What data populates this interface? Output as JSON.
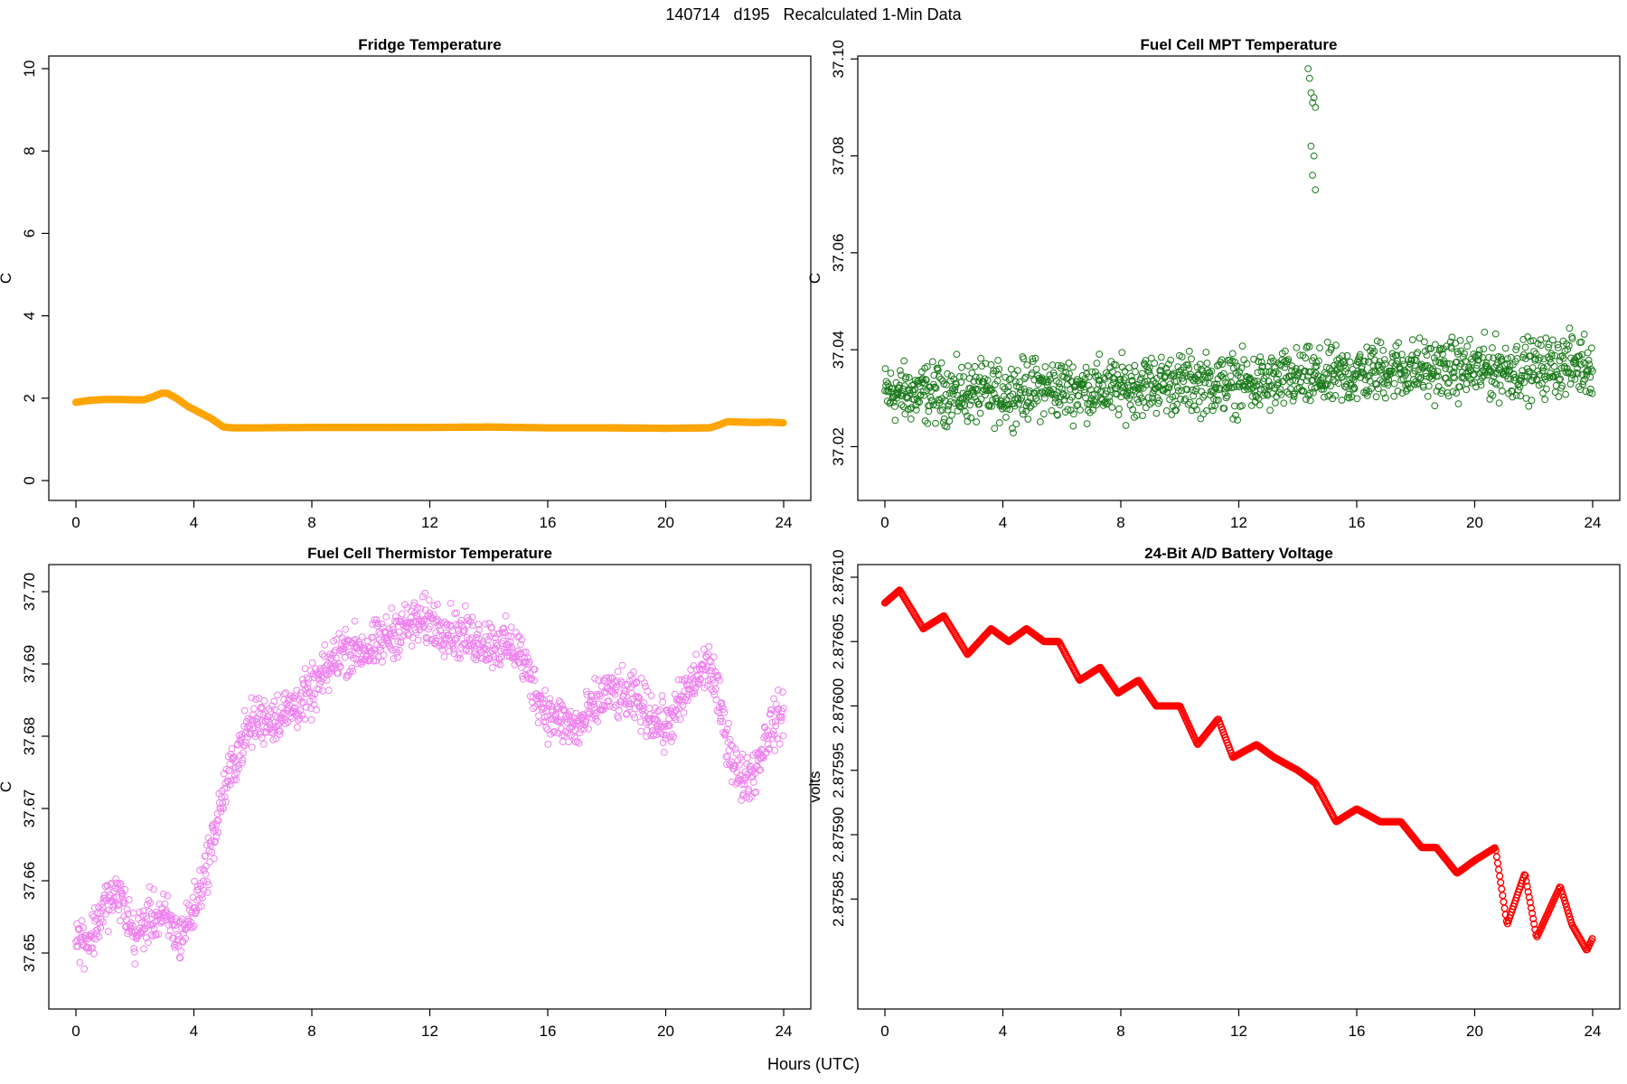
{
  "main_title": "140714   d195   Recalculated 1-Min Data",
  "x_axis_title": "Hours (UTC)",
  "chart_data": [
    {
      "id": "fridge",
      "type": "scatter",
      "title": "Fridge Temperature",
      "ylabel": "C",
      "xlabel": "",
      "color": "#FFA500",
      "xlim": [
        0,
        24
      ],
      "ylim": [
        0,
        10
      ],
      "xticks": [
        0,
        4,
        8,
        12,
        16,
        20,
        24
      ],
      "yticks": [
        0,
        2,
        4,
        6,
        8,
        10
      ],
      "ytick_labels": [
        "0",
        "2",
        "4",
        "6",
        "8",
        "10"
      ],
      "series": [
        {
          "x": [
            0,
            0.5,
            1,
            1.5,
            2,
            2.3,
            2.6,
            2.9,
            3.1,
            3.4,
            3.8,
            4.2,
            4.6,
            5.0,
            5.3,
            6,
            8,
            10,
            12,
            14,
            16,
            18,
            20,
            21.5,
            21.8,
            22.1,
            22.5,
            23,
            23.5,
            24
          ],
          "y": [
            1.9,
            1.95,
            1.97,
            1.97,
            1.96,
            1.96,
            2.03,
            2.12,
            2.12,
            2.0,
            1.8,
            1.65,
            1.5,
            1.3,
            1.28,
            1.28,
            1.29,
            1.29,
            1.29,
            1.3,
            1.28,
            1.28,
            1.27,
            1.28,
            1.35,
            1.43,
            1.42,
            1.41,
            1.42,
            1.4
          ]
        }
      ]
    },
    {
      "id": "mpt",
      "type": "scatter",
      "title": "Fuel Cell MPT Temperature",
      "ylabel": "C",
      "xlabel": "",
      "color": "#1A7A1A",
      "xlim": [
        0,
        24
      ],
      "ylim": [
        37.013,
        37.098
      ],
      "xticks": [
        0,
        4,
        8,
        12,
        16,
        20,
        24
      ],
      "yticks": [
        37.02,
        37.04,
        37.06,
        37.08,
        37.1
      ],
      "ytick_labels": [
        "37.02",
        "37.04",
        "37.06",
        "37.08",
        "37.10"
      ],
      "series": [
        {
          "x": [
            0,
            1,
            2,
            3,
            4,
            5,
            6,
            7,
            8,
            9,
            10,
            11,
            12,
            13,
            14,
            15,
            16,
            17,
            18,
            19,
            20,
            21,
            22,
            23,
            24
          ],
          "y": [
            37.031,
            37.031,
            37.031,
            37.031,
            37.031,
            37.032,
            37.032,
            37.032,
            37.032,
            37.033,
            37.033,
            37.033,
            37.033,
            37.033,
            37.034,
            37.034,
            37.035,
            37.036,
            37.036,
            37.036,
            37.036,
            37.036,
            37.036,
            37.037,
            37.037
          ],
          "spread": 0.009
        },
        {
          "x": [
            14.35,
            14.4,
            14.45,
            14.5,
            14.55,
            14.6,
            14.45,
            14.55,
            14.6,
            14.5
          ],
          "y": [
            37.098,
            37.096,
            37.093,
            37.091,
            37.092,
            37.09,
            37.082,
            37.08,
            37.073,
            37.076
          ]
        }
      ]
    },
    {
      "id": "thermistor",
      "type": "scatter",
      "title": "Fuel Cell Thermistor Temperature",
      "ylabel": "C",
      "xlabel": "",
      "color": "#EE82EE",
      "xlim": [
        0,
        24
      ],
      "ylim": [
        37.645,
        37.702
      ],
      "xticks": [
        0,
        4,
        8,
        12,
        16,
        20,
        24
      ],
      "yticks": [
        37.65,
        37.66,
        37.67,
        37.68,
        37.69,
        37.7
      ],
      "ytick_labels": [
        "37.65",
        "37.66",
        "37.67",
        "37.68",
        "37.69",
        "37.70"
      ],
      "series": [
        {
          "x": [
            0,
            0.5,
            1,
            1.5,
            2,
            2.5,
            3,
            3.5,
            4,
            4.5,
            5,
            5.5,
            6,
            7,
            8,
            9,
            10,
            11,
            12,
            13,
            14,
            15,
            15.5,
            16,
            17,
            18,
            19,
            20,
            21,
            21.5,
            22,
            22.5,
            23,
            23.5,
            24
          ],
          "y": [
            37.652,
            37.652,
            37.657,
            37.658,
            37.652,
            37.655,
            37.655,
            37.652,
            37.656,
            37.663,
            37.672,
            37.678,
            37.682,
            37.683,
            37.686,
            37.692,
            37.692,
            37.695,
            37.696,
            37.694,
            37.693,
            37.692,
            37.687,
            37.683,
            37.681,
            37.686,
            37.685,
            37.681,
            37.688,
            37.69,
            37.681,
            37.674,
            37.675,
            37.681,
            37.683
          ],
          "spread": 0.005
        }
      ]
    },
    {
      "id": "battery",
      "type": "scatter",
      "title": "24-Bit A/D Battery Voltage",
      "ylabel": "volts",
      "xlabel": "",
      "color": "#FF0000",
      "xlim": [
        0,
        24
      ],
      "ylim": [
        2.87578,
        2.8761
      ],
      "xticks": [
        0,
        4,
        8,
        12,
        16,
        20,
        24
      ],
      "yticks": [
        2.87585,
        2.8759,
        2.87595,
        2.876,
        2.87605,
        2.8761
      ],
      "ytick_labels": [
        "2.87585",
        "2.87590",
        "2.87595",
        "2.87600",
        "2.87605",
        "2.87610"
      ],
      "series": [
        {
          "x": [
            0,
            0.5,
            1.3,
            2,
            2.8,
            3.6,
            4.2,
            4.8,
            5.4,
            5.9,
            6.6,
            7.3,
            7.9,
            8.6,
            9.2,
            10,
            10.6,
            11.3,
            11.8,
            12.6,
            13.2,
            14,
            14.6,
            15.3,
            16,
            16.8,
            17.5,
            18.2,
            18.7,
            19.4,
            20,
            20.7,
            21.1,
            21.7,
            22.1,
            22.9,
            23.3,
            23.8,
            24
          ],
          "y": [
            2.87608,
            2.87609,
            2.87606,
            2.87607,
            2.87604,
            2.87606,
            2.87605,
            2.87606,
            2.87605,
            2.87605,
            2.87602,
            2.87603,
            2.87601,
            2.87602,
            2.876,
            2.876,
            2.87597,
            2.87599,
            2.87596,
            2.87597,
            2.87596,
            2.87595,
            2.87594,
            2.87591,
            2.87592,
            2.87591,
            2.87591,
            2.87589,
            2.87589,
            2.87587,
            2.87588,
            2.87589,
            2.87583,
            2.87587,
            2.87582,
            2.87586,
            2.87583,
            2.87581,
            2.87582
          ]
        }
      ]
    }
  ]
}
